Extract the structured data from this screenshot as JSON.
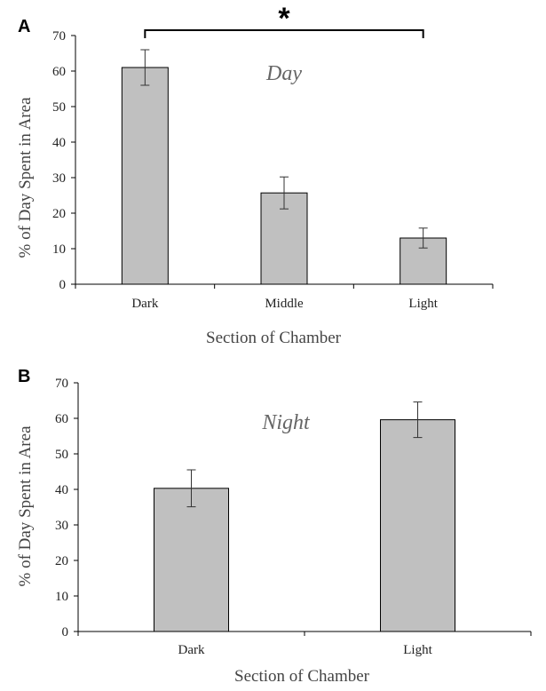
{
  "chart_data": [
    {
      "type": "bar",
      "panel": "A",
      "annotation": "Day",
      "categories": [
        "Dark",
        "Middle",
        "Light"
      ],
      "values": [
        61,
        25.7,
        13
      ],
      "errors": [
        5,
        4.5,
        2.8
      ],
      "xlabel": "Section of Chamber",
      "ylabel": "% of Day Spent in Area",
      "ylim": [
        0,
        70
      ],
      "yticks": [
        0,
        10,
        20,
        30,
        40,
        50,
        60,
        70
      ],
      "significance": {
        "from": "Dark",
        "to": "Light",
        "mark": "*"
      },
      "bar_color": "#c0c0c0",
      "grid": false
    },
    {
      "type": "bar",
      "panel": "B",
      "annotation": "Night",
      "categories": [
        "Dark",
        "Light"
      ],
      "values": [
        40.3,
        59.6
      ],
      "errors": [
        5.2,
        5
      ],
      "xlabel": "Section of Chamber",
      "ylabel": "% of Day Spent in Area",
      "ylim": [
        0,
        70
      ],
      "yticks": [
        0,
        10,
        20,
        30,
        40,
        50,
        60,
        70
      ],
      "bar_color": "#c0c0c0",
      "grid": false
    }
  ]
}
